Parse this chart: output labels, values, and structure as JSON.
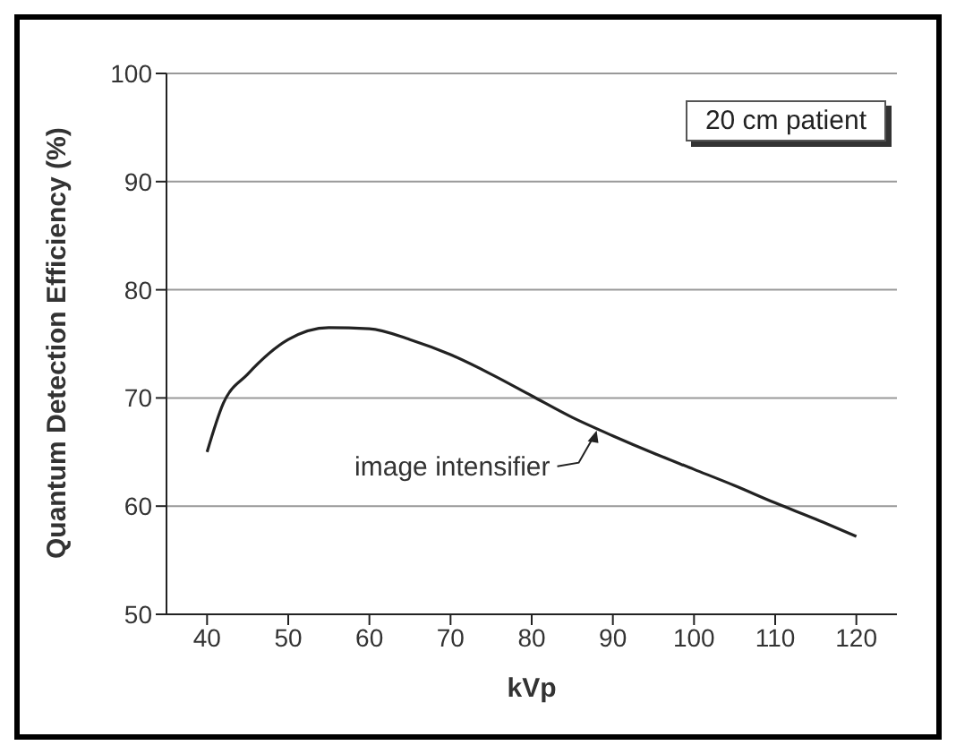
{
  "chart_data": {
    "type": "line",
    "xlabel": "kVp",
    "ylabel": "Quantum Detection Efficiency (%)",
    "x": [
      40,
      42,
      45,
      50,
      55,
      60,
      65,
      70,
      75,
      80,
      85,
      90,
      95,
      100,
      105,
      110,
      115,
      120
    ],
    "series": [
      {
        "color": "#222222",
        "values": [
          65,
          69.5,
          72.2,
          75.4,
          76.5,
          76.4,
          75.4,
          74,
          72.2,
          70.2,
          68.2,
          66.5,
          64.9,
          63.4,
          61.9,
          60.3,
          58.8,
          57.2
        ]
      }
    ],
    "xlim": [
      35,
      125
    ],
    "xticks": [
      40,
      50,
      60,
      70,
      80,
      90,
      100,
      110,
      120
    ],
    "ylim": [
      50,
      100
    ],
    "yticks": [
      50,
      60,
      70,
      80,
      90,
      100
    ],
    "grid": "y",
    "marker": "none",
    "line_style": "solid",
    "annotations": [
      "20 cm patient",
      {
        "text": "image intensifier",
        "x": 88,
        "y": 67
      }
    ]
  }
}
